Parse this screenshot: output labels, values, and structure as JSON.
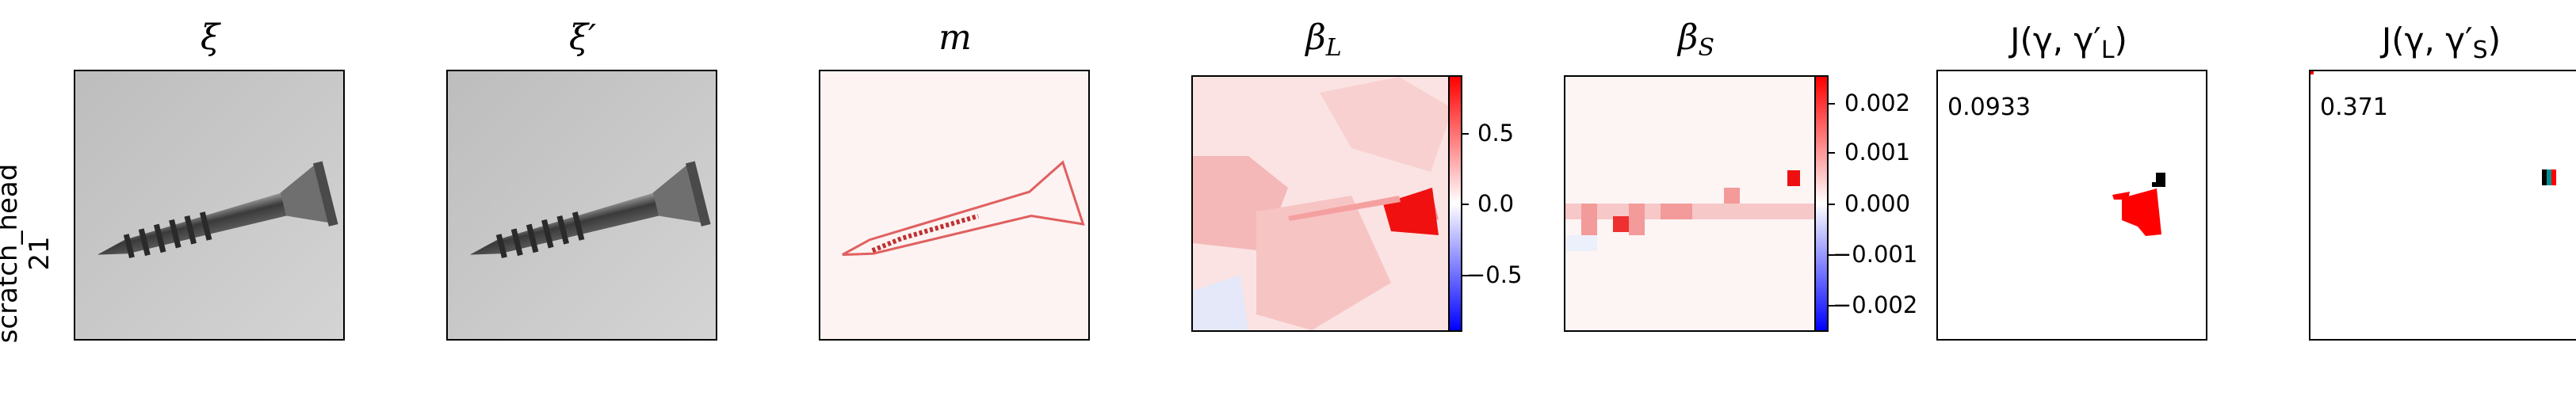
{
  "row_label": {
    "line1": "scratch_head",
    "line2": "21"
  },
  "panels": [
    {
      "title": "ξ"
    },
    {
      "title": "ξ′"
    },
    {
      "title": "m"
    },
    {
      "title_base": "β",
      "title_sub": "L"
    },
    {
      "title_base": "β",
      "title_sub": "S"
    },
    {
      "title": "J(γ, γ′",
      "title_sub": "L",
      "title_end": ")"
    },
    {
      "title": "J(γ, γ′",
      "title_sub": "S",
      "title_end": ")"
    }
  ],
  "colorbar_L": {
    "ticks": [
      "0.5",
      "0.0",
      "−0.5"
    ],
    "colormap": "bwr"
  },
  "colorbar_S": {
    "ticks": [
      "0.002",
      "0.001",
      "0.000",
      "−0.001",
      "−0.002"
    ],
    "colormap": "bwr"
  },
  "scores": {
    "L": "0.0933",
    "S": "0.371"
  },
  "colors": {
    "red": "#ff0000",
    "blue": "#0000ff",
    "gray_bg": "#c8c8c8"
  }
}
